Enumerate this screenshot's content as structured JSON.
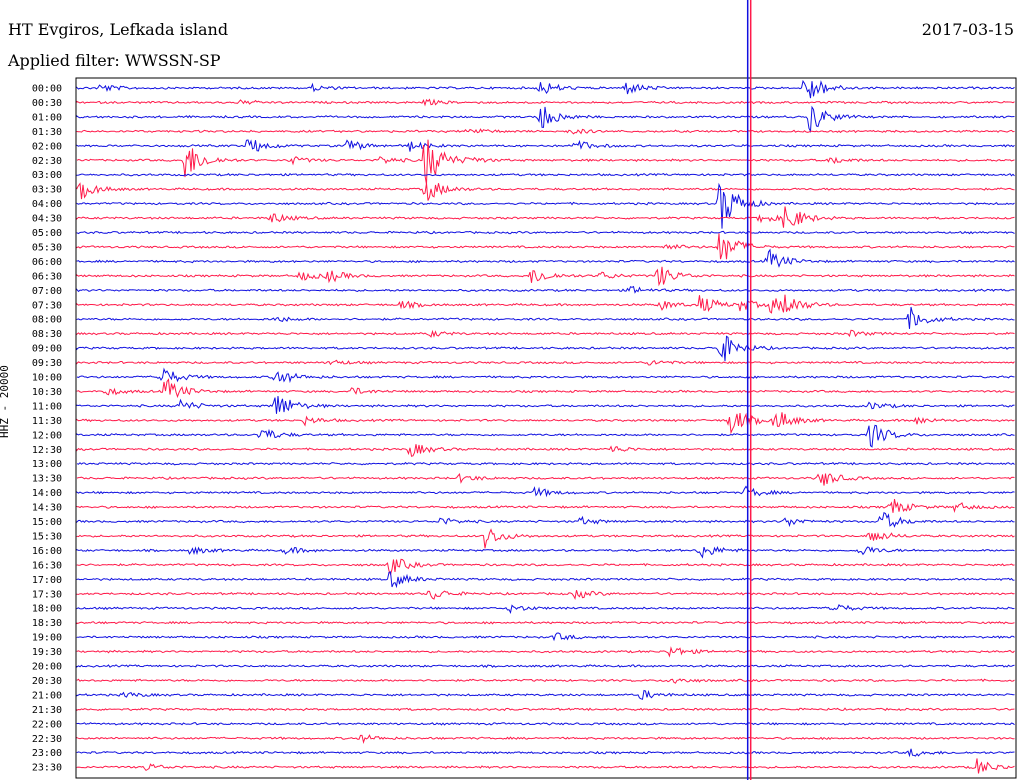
{
  "header": {
    "station": "HT Evgiros, Lefkada island",
    "date": "2017-03-15",
    "filter": "Applied filter: WWSSN-SP"
  },
  "chart_data": {
    "type": "helicorder",
    "title": "HT Evgiros, Lefkada island",
    "date": "2017-03-15",
    "filter": "Applied filter: WWSSN-SP",
    "ylabel": "HHZ - 20000",
    "row_labels": [
      "00:00",
      "00:30",
      "01:00",
      "01:30",
      "02:00",
      "02:30",
      "03:00",
      "03:30",
      "04:00",
      "04:30",
      "05:00",
      "05:30",
      "06:00",
      "06:30",
      "07:00",
      "07:30",
      "08:00",
      "08:30",
      "09:00",
      "09:30",
      "10:00",
      "10:30",
      "11:00",
      "11:30",
      "12:00",
      "12:30",
      "13:00",
      "13:30",
      "14:00",
      "14:30",
      "15:00",
      "15:30",
      "16:00",
      "16:30",
      "17:00",
      "17:30",
      "18:00",
      "18:30",
      "19:00",
      "19:30",
      "20:00",
      "20:30",
      "21:00",
      "21:30",
      "22:00",
      "22:30",
      "23:00",
      "23:30"
    ],
    "row_minutes": 30,
    "series_colors": [
      "#1010e0",
      "#ff1a4a"
    ],
    "marker_minute": 21.5
  }
}
